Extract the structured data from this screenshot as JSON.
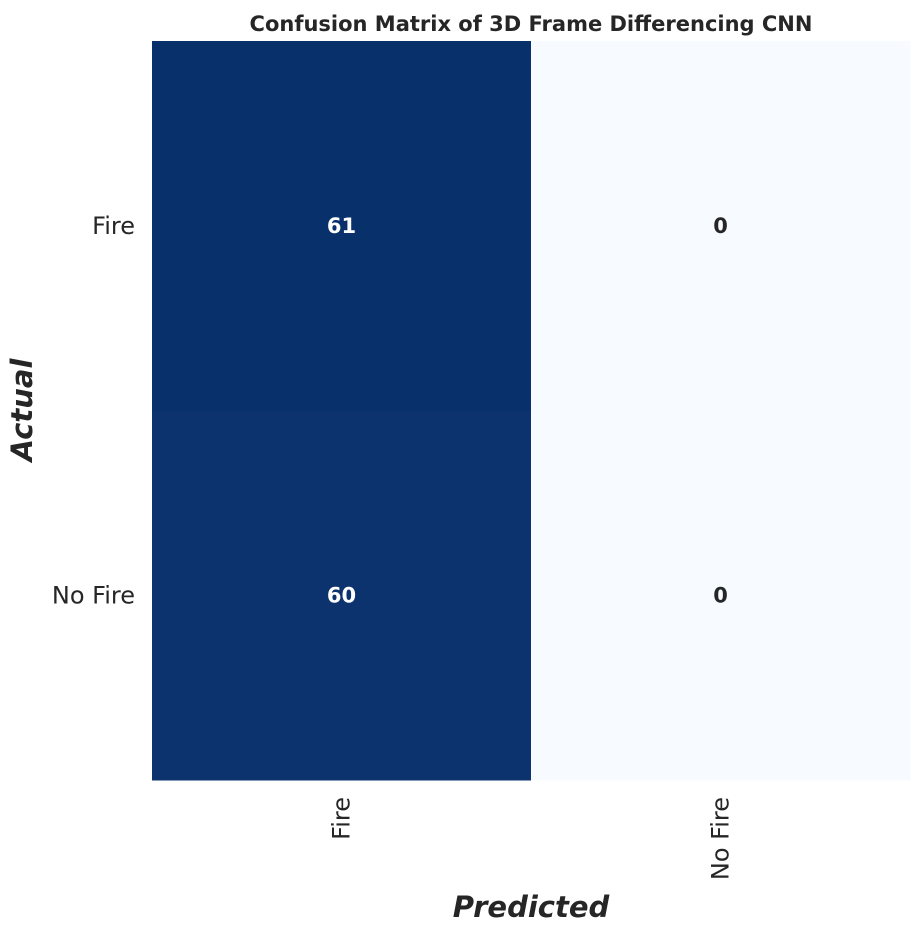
{
  "chart_data": {
    "type": "heatmap",
    "title": "Confusion Matrix of 3D Frame Differencing CNN",
    "xlabel": "Predicted",
    "ylabel": "Actual",
    "x_categories": [
      "Fire",
      "No Fire"
    ],
    "y_categories": [
      "Fire",
      "No Fire"
    ],
    "values": [
      [
        61,
        0
      ],
      [
        60,
        0
      ]
    ],
    "colormap": "Blues",
    "color_low": "#f7fbff",
    "color_high": "#08306b",
    "colorbar": false,
    "annotations": true
  }
}
